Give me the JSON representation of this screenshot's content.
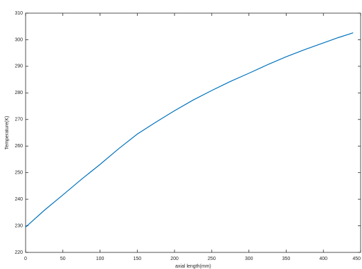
{
  "chart_data": {
    "type": "line",
    "x_label": "axial length(mm)",
    "y_label": "Temperature(K)",
    "x": [
      0,
      25,
      50,
      75,
      100,
      125,
      150,
      175,
      200,
      225,
      250,
      275,
      300,
      325,
      350,
      375,
      400,
      420,
      440
    ],
    "series": [
      {
        "color": "#0072bd",
        "values": [
          229.5,
          235.8,
          241.6,
          247.5,
          253.1,
          259.0,
          264.5,
          269.0,
          273.3,
          277.3,
          280.9,
          284.3,
          287.4,
          290.6,
          293.6,
          296.3,
          298.8,
          300.8,
          302.6
        ]
      }
    ],
    "xlim": [
      0,
      450
    ],
    "xticks": [
      0,
      50,
      100,
      150,
      200,
      250,
      300,
      350,
      400,
      450
    ],
    "ylim": [
      220,
      310
    ],
    "yticks": [
      220,
      230,
      240,
      250,
      260,
      270,
      280,
      290,
      300,
      310
    ]
  }
}
